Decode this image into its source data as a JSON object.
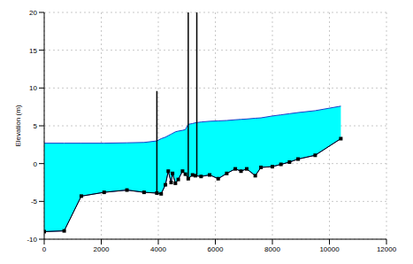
{
  "chart_data": {
    "type": "area",
    "y_label": "Elevation (m)",
    "x": [
      0,
      700,
      1300,
      2100,
      2900,
      3500,
      3950,
      4100,
      4250,
      4350,
      4450,
      4500,
      4600,
      4700,
      4850,
      4950,
      5050,
      5200,
      5300,
      5500,
      5800,
      6100,
      6400,
      6700,
      6900,
      7100,
      7400,
      7600,
      8000,
      8300,
      8600,
      8900,
      9500,
      10400
    ],
    "series": [
      {
        "type": "line",
        "color": "#000000",
        "marker": "square",
        "values": [
          -9,
          -8.9,
          -4.3,
          -3.8,
          -3.5,
          -3.8,
          -3.9,
          -4.0,
          -2.8,
          -1.0,
          -2.5,
          -1.3,
          -2.6,
          -2.1,
          -1.0,
          -1.4,
          -2.0,
          -1.5,
          -1.6,
          -1.7,
          -1.5,
          -2.0,
          -1.3,
          -0.7,
          -1.0,
          -0.7,
          -1.6,
          -0.5,
          -0.4,
          -0.1,
          0.2,
          0.6,
          1.1,
          3.3
        ]
      },
      {
        "type": "area",
        "color": "#00ffff",
        "values": [
          2.7,
          2.7,
          2.7,
          2.7,
          2.75,
          2.8,
          3.0,
          3.3,
          3.5,
          3.7,
          3.9,
          4.0,
          4.2,
          4.3,
          4.4,
          4.5,
          5.2,
          5.3,
          5.4,
          5.5,
          5.6,
          5.65,
          5.7,
          5.8,
          5.85,
          5.9,
          6.0,
          6.05,
          6.3,
          6.45,
          6.6,
          6.75,
          7.0,
          7.6
        ]
      }
    ],
    "structures": [
      {
        "x": 3950,
        "values": [
          -3.9,
          9.6
        ]
      },
      {
        "x": 5050,
        "values": [
          -2.0,
          21
        ]
      },
      {
        "x": 5350,
        "values": [
          -1.6,
          21
        ]
      }
    ],
    "xlim": [
      0,
      12000
    ],
    "xticks": [
      0,
      2000,
      4000,
      6000,
      8000,
      10000,
      12000
    ],
    "ylim": [
      -10,
      20
    ],
    "yticks": [
      -10,
      -5,
      0,
      5,
      10,
      15,
      20
    ],
    "grid": true
  }
}
